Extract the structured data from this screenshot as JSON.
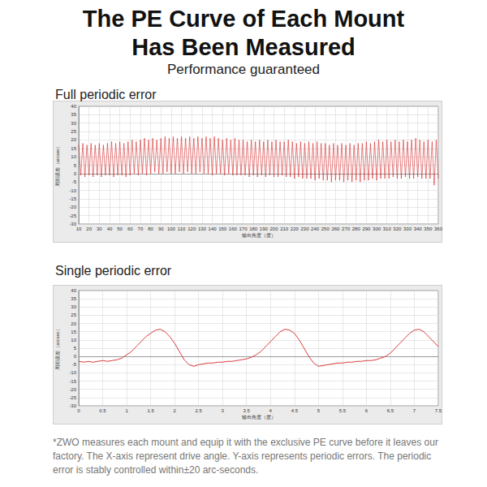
{
  "header": {
    "title": [
      "The PE Curve of Each Mount",
      "Has Been Measured"
    ],
    "subtitle": "Performance guaranteed"
  },
  "footnote": "*ZWO measures each mount and equip it with the exclusive PE curve before it leaves our factory. The X-axis represent drive angle. Y-axis represents periodic errors. The periodic error is stably controlled within±20 arc-seconds.",
  "chart_data": [
    {
      "type": "line",
      "title": "Full periodic error",
      "x_label": "输出角度（度）",
      "y_label": "周期误差（arcsec）",
      "color": "#d62728",
      "grid": true,
      "xlim": [
        10,
        360
      ],
      "ylim": [
        -30,
        40
      ],
      "xticks": [
        10,
        20,
        30,
        40,
        50,
        60,
        70,
        80,
        90,
        100,
        110,
        120,
        130,
        140,
        150,
        160,
        170,
        180,
        190,
        200,
        210,
        220,
        230,
        240,
        250,
        260,
        270,
        280,
        290,
        300,
        310,
        320,
        330,
        340,
        350,
        360
      ],
      "yticks": [
        -30,
        -25,
        -20,
        -15,
        -10,
        -5,
        0,
        5,
        10,
        15,
        20,
        25,
        30,
        35,
        40
      ],
      "x": [
        10,
        12,
        14,
        16,
        18,
        20,
        22,
        24,
        26,
        28,
        30,
        32,
        34,
        36,
        38,
        40,
        42,
        44,
        46,
        48,
        50,
        52,
        54,
        56,
        58,
        60,
        62,
        64,
        66,
        68,
        70,
        72,
        74,
        76,
        78,
        80,
        82,
        84,
        86,
        88,
        90,
        92,
        94,
        96,
        98,
        100,
        102,
        104,
        106,
        108,
        110,
        112,
        114,
        116,
        118,
        120,
        122,
        124,
        126,
        128,
        130,
        132,
        134,
        136,
        138,
        140,
        142,
        144,
        146,
        148,
        150,
        152,
        154,
        156,
        158,
        160,
        162,
        164,
        166,
        168,
        170,
        172,
        174,
        176,
        178,
        180,
        182,
        184,
        186,
        188,
        190,
        192,
        194,
        196,
        198,
        200,
        202,
        204,
        206,
        208,
        210,
        212,
        214,
        216,
        218,
        220,
        222,
        224,
        226,
        228,
        230,
        232,
        234,
        236,
        238,
        240,
        242,
        244,
        246,
        248,
        250,
        252,
        254,
        256,
        258,
        260,
        262,
        264,
        266,
        268,
        270,
        272,
        274,
        276,
        278,
        280,
        282,
        284,
        286,
        288,
        290,
        292,
        294,
        296,
        298,
        300,
        302,
        304,
        306,
        308,
        310,
        312,
        314,
        316,
        318,
        320,
        322,
        324,
        326,
        328,
        330,
        332,
        334,
        336,
        338,
        340,
        342,
        344,
        346,
        348,
        350,
        352,
        354,
        356,
        358,
        360
      ],
      "values": [
        17,
        -1,
        18,
        -2,
        17,
        -1,
        18,
        -2,
        17,
        -1,
        18,
        -2,
        17,
        -1,
        18,
        -1,
        19,
        -2,
        18,
        -1,
        19,
        -1,
        18,
        -2,
        19,
        -1,
        20,
        0,
        19,
        -1,
        20,
        0,
        21,
        -1,
        20,
        0,
        21,
        1,
        20,
        0,
        21,
        0,
        22,
        1,
        21,
        0,
        22,
        0,
        21,
        1,
        22,
        0,
        21,
        1,
        22,
        0,
        21,
        0,
        22,
        1,
        21,
        0,
        22,
        0,
        21,
        -1,
        22,
        0,
        21,
        0,
        20,
        -1,
        21,
        0,
        20,
        -1,
        21,
        -1,
        20,
        -1,
        20,
        -1,
        19,
        -2,
        20,
        -1,
        19,
        -2,
        20,
        -1,
        19,
        -2,
        20,
        -1,
        19,
        -2,
        20,
        -2,
        19,
        -1,
        19,
        -2,
        20,
        -2,
        19,
        -3,
        18,
        -2,
        19,
        -3,
        18,
        -3,
        19,
        -3,
        18,
        -4,
        19,
        -3,
        18,
        -4,
        18,
        -4,
        17,
        -5,
        18,
        -4,
        17,
        -4,
        18,
        -5,
        17,
        -4,
        18,
        -5,
        17,
        -4,
        18,
        -5,
        18,
        -4,
        19,
        -4,
        18,
        -3,
        19,
        -4,
        20,
        -3,
        19,
        -3,
        20,
        -3,
        19,
        -2,
        20,
        -3,
        19,
        -3,
        20,
        -2,
        19,
        -3,
        20,
        -3,
        21,
        -2,
        20,
        -3,
        19,
        -3,
        20,
        -3,
        19,
        -7,
        20,
        -3
      ]
    },
    {
      "type": "line",
      "title": "Single periodic error",
      "x_label": "输出角度（度）",
      "y_label": "周期误差（arcsec）",
      "color": "#d62728",
      "grid": true,
      "xlim": [
        0,
        7.5
      ],
      "ylim": [
        -30,
        40
      ],
      "xticks": [
        0,
        0.5,
        1,
        1.5,
        2,
        2.5,
        3,
        3.5,
        4,
        4.5,
        5,
        5.5,
        6,
        6.5,
        7,
        7.5
      ],
      "yticks": [
        -30,
        -25,
        -20,
        -15,
        -10,
        -5,
        0,
        5,
        10,
        15,
        20,
        25,
        30,
        35,
        40
      ],
      "x": [
        0,
        0.1,
        0.2,
        0.3,
        0.4,
        0.5,
        0.6,
        0.7,
        0.8,
        0.9,
        1,
        1.1,
        1.2,
        1.3,
        1.4,
        1.5,
        1.6,
        1.7,
        1.8,
        1.9,
        2,
        2.1,
        2.2,
        2.3,
        2.4,
        2.5,
        2.6,
        2.7,
        2.8,
        2.9,
        3,
        3.1,
        3.2,
        3.3,
        3.4,
        3.5,
        3.6,
        3.7,
        3.8,
        3.9,
        4,
        4.1,
        4.2,
        4.3,
        4.4,
        4.5,
        4.6,
        4.7,
        4.8,
        4.9,
        5,
        5.1,
        5.2,
        5.3,
        5.4,
        5.5,
        5.6,
        5.7,
        5.8,
        5.9,
        6,
        6.1,
        6.2,
        6.3,
        6.4,
        6.5,
        6.6,
        6.7,
        6.8,
        6.9,
        7,
        7.1,
        7.2,
        7.3,
        7.4,
        7.5
      ],
      "values": [
        -3,
        -3.5,
        -3,
        -3.5,
        -3,
        -2.5,
        -3,
        -2.5,
        -2,
        -1,
        1,
        3,
        6,
        9,
        12,
        14,
        16,
        16.5,
        15,
        12,
        8,
        3,
        -2,
        -5,
        -6,
        -5,
        -4.5,
        -4,
        -4,
        -3.5,
        -3.5,
        -3,
        -3,
        -2.5,
        -2,
        -1.5,
        -0.5,
        1,
        3,
        6,
        9,
        12,
        15,
        16.5,
        16,
        14,
        10,
        5,
        0,
        -4,
        -6,
        -5.5,
        -5,
        -4.5,
        -4,
        -4,
        -3.5,
        -3.5,
        -3,
        -3,
        -2.5,
        -2.5,
        -2,
        -1,
        0,
        2,
        5,
        8,
        11,
        14,
        16,
        16.5,
        15,
        12,
        9,
        6
      ]
    }
  ]
}
